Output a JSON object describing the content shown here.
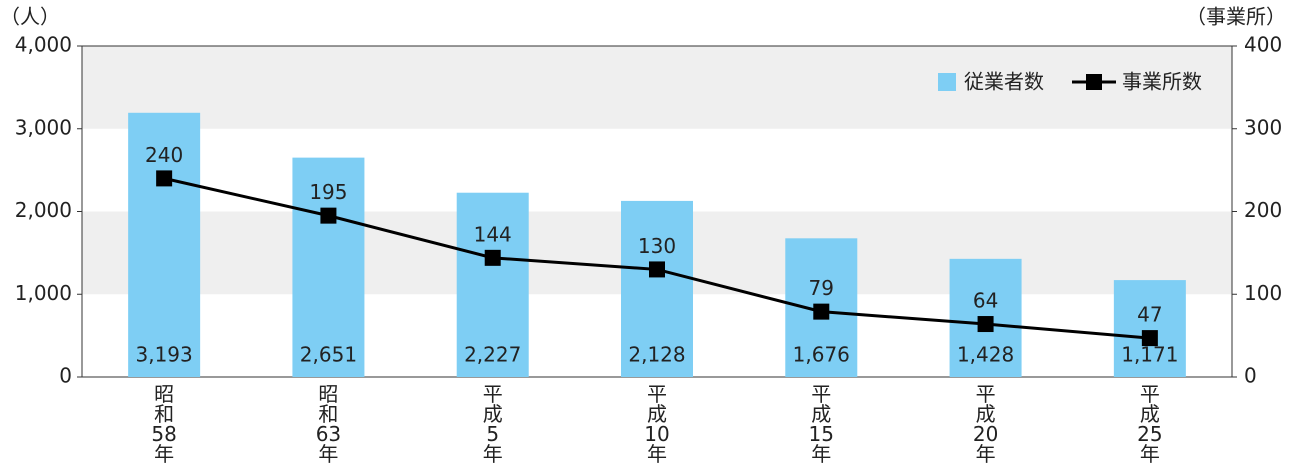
{
  "chart_data": {
    "type": "bar_line",
    "y_label": "（人）",
    "y2_label": "（事業所）",
    "categories": [
      "昭和58年",
      "昭和63年",
      "平成5年",
      "平成10年",
      "平成15年",
      "平成20年",
      "平成25年"
    ],
    "series": [
      {
        "name": "従業者数",
        "type": "bar",
        "color": "#7ecef4",
        "values": [
          3193,
          2651,
          2227,
          2128,
          1676,
          1428,
          1171
        ],
        "value_labels": [
          "3,193",
          "2,651",
          "2,227",
          "2,128",
          "1,676",
          "1,428",
          "1,171"
        ]
      },
      {
        "name": "事業所数",
        "type": "line",
        "axis": "y2",
        "color": "#000000",
        "values": [
          240,
          195,
          144,
          130,
          79,
          64,
          47
        ]
      }
    ],
    "ylim": [
      0,
      4000
    ],
    "yticks": [
      0,
      {
        "value": 1000,
        "label": "1,000"
      },
      {
        "value": 2000,
        "label": "2,000"
      },
      {
        "value": 3000,
        "label": "3,000"
      },
      {
        "value": 4000,
        "label": "4,000"
      }
    ],
    "y2lim": [
      0,
      400
    ],
    "y2ticks": [
      0,
      100,
      200,
      300,
      400
    ],
    "grid_bands": true,
    "legend": "top-right"
  }
}
